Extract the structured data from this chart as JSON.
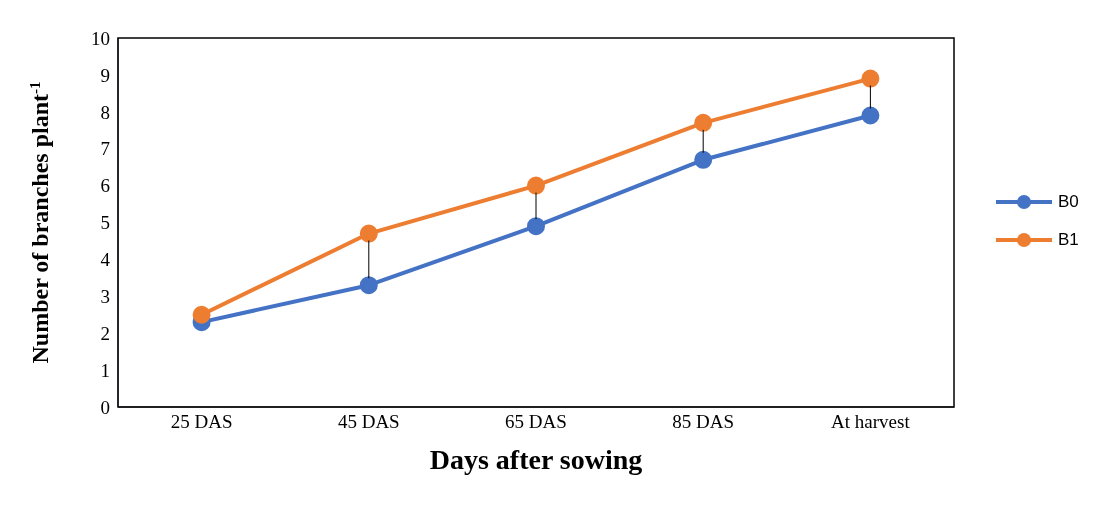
{
  "chart_data": {
    "type": "line",
    "xlabel": "Days after sowing",
    "ylabel": "Number of branches plant$^{-1}$",
    "categories": [
      "25 DAS",
      "45 DAS",
      "65 DAS",
      "85 DAS",
      "At harvest"
    ],
    "series": [
      {
        "name": "B0",
        "color": "#4472c4",
        "values": [
          2.3,
          3.3,
          4.9,
          6.7,
          7.9
        ]
      },
      {
        "name": "B1",
        "color": "#ed7d31",
        "values": [
          2.5,
          4.7,
          6.0,
          7.7,
          8.9
        ]
      }
    ],
    "ylim": [
      0,
      10
    ],
    "yticks": [
      0,
      1,
      2,
      3,
      4,
      5,
      6,
      7,
      8,
      9,
      10
    ],
    "legend": "right",
    "marker": "circle"
  }
}
